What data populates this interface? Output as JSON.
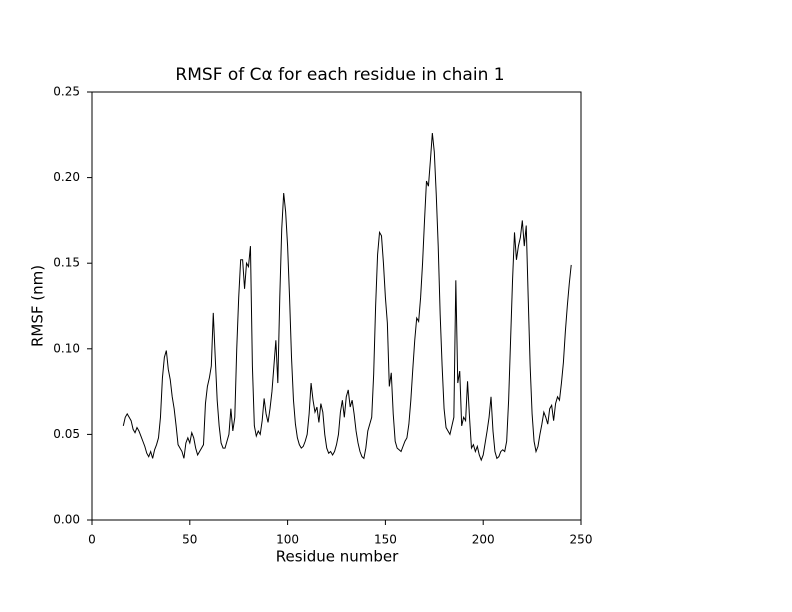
{
  "chart_data": {
    "type": "line",
    "title": "RMSF of  Cα for each residue in chain 1",
    "x_label": "Residue number",
    "y_label": "RMSF (nm)",
    "xlim": [
      0,
      250
    ],
    "xticks": [
      0,
      50,
      100,
      150,
      200,
      250
    ],
    "ylim": [
      0,
      0.25
    ],
    "yticks": [
      {
        "value": 0,
        "label": "0.00"
      },
      {
        "value": 0.05,
        "label": "0.05"
      },
      {
        "value": 0.1,
        "label": "0.10"
      },
      {
        "value": 0.15,
        "label": "0.15"
      },
      {
        "value": 0.2,
        "label": "0.20"
      },
      {
        "value": 0.25,
        "label": "0.25"
      }
    ],
    "color": "#000000",
    "x": [
      16,
      17,
      18,
      19,
      20,
      21,
      22,
      23,
      24,
      25,
      26,
      27,
      28,
      29,
      30,
      31,
      32,
      33,
      34,
      35,
      36,
      37,
      38,
      39,
      40,
      41,
      42,
      43,
      44,
      45,
      46,
      47,
      48,
      49,
      50,
      51,
      52,
      53,
      54,
      55,
      56,
      57,
      58,
      59,
      60,
      61,
      62,
      63,
      64,
      65,
      66,
      67,
      68,
      69,
      70,
      71,
      72,
      73,
      74,
      75,
      76,
      77,
      78,
      79,
      80,
      81,
      82,
      83,
      84,
      85,
      86,
      87,
      88,
      89,
      90,
      91,
      92,
      93,
      94,
      95,
      96,
      97,
      98,
      99,
      100,
      101,
      102,
      103,
      104,
      105,
      106,
      107,
      108,
      109,
      110,
      111,
      112,
      113,
      114,
      115,
      116,
      117,
      118,
      119,
      120,
      121,
      122,
      123,
      124,
      125,
      126,
      127,
      128,
      129,
      130,
      131,
      132,
      133,
      134,
      135,
      136,
      137,
      138,
      139,
      140,
      141,
      142,
      143,
      144,
      145,
      146,
      147,
      148,
      149,
      150,
      151,
      152,
      153,
      154,
      155,
      156,
      157,
      158,
      159,
      160,
      161,
      162,
      163,
      164,
      165,
      166,
      167,
      168,
      169,
      170,
      171,
      172,
      173,
      174,
      175,
      176,
      177,
      178,
      179,
      180,
      181,
      182,
      183,
      184,
      185,
      186,
      187,
      188,
      189,
      190,
      191,
      192,
      193,
      194,
      195,
      196,
      197,
      198,
      199,
      200,
      201,
      202,
      203,
      204,
      205,
      206,
      207,
      208,
      209,
      210,
      211,
      212,
      213,
      214,
      215,
      216,
      217,
      218,
      219,
      220,
      221,
      222,
      223,
      224,
      225,
      226,
      227,
      228,
      229,
      230,
      231,
      232,
      233,
      234,
      235,
      236,
      237,
      238,
      239,
      240,
      241,
      242,
      243,
      244,
      245
    ],
    "values": [
      0.055,
      0.06,
      0.062,
      0.06,
      0.058,
      0.053,
      0.051,
      0.054,
      0.052,
      0.049,
      0.046,
      0.043,
      0.039,
      0.037,
      0.04,
      0.036,
      0.041,
      0.044,
      0.048,
      0.06,
      0.083,
      0.095,
      0.099,
      0.088,
      0.082,
      0.072,
      0.065,
      0.055,
      0.044,
      0.042,
      0.04,
      0.036,
      0.045,
      0.048,
      0.045,
      0.051,
      0.048,
      0.042,
      0.038,
      0.04,
      0.042,
      0.044,
      0.068,
      0.078,
      0.083,
      0.09,
      0.121,
      0.095,
      0.07,
      0.055,
      0.045,
      0.042,
      0.042,
      0.046,
      0.05,
      0.065,
      0.052,
      0.06,
      0.1,
      0.13,
      0.152,
      0.152,
      0.135,
      0.15,
      0.148,
      0.16,
      0.09,
      0.055,
      0.049,
      0.052,
      0.05,
      0.058,
      0.071,
      0.062,
      0.057,
      0.065,
      0.075,
      0.09,
      0.105,
      0.08,
      0.13,
      0.17,
      0.191,
      0.18,
      0.16,
      0.13,
      0.095,
      0.07,
      0.056,
      0.048,
      0.044,
      0.042,
      0.043,
      0.046,
      0.05,
      0.062,
      0.08,
      0.07,
      0.063,
      0.066,
      0.057,
      0.068,
      0.063,
      0.05,
      0.042,
      0.039,
      0.04,
      0.038,
      0.04,
      0.044,
      0.05,
      0.063,
      0.07,
      0.06,
      0.072,
      0.076,
      0.066,
      0.07,
      0.062,
      0.052,
      0.045,
      0.04,
      0.037,
      0.036,
      0.042,
      0.052,
      0.056,
      0.06,
      0.085,
      0.125,
      0.155,
      0.168,
      0.166,
      0.15,
      0.13,
      0.115,
      0.078,
      0.086,
      0.062,
      0.046,
      0.042,
      0.041,
      0.04,
      0.043,
      0.046,
      0.048,
      0.056,
      0.07,
      0.088,
      0.105,
      0.118,
      0.116,
      0.13,
      0.15,
      0.175,
      0.198,
      0.195,
      0.21,
      0.226,
      0.215,
      0.19,
      0.16,
      0.12,
      0.09,
      0.065,
      0.054,
      0.052,
      0.05,
      0.055,
      0.06,
      0.14,
      0.08,
      0.087,
      0.055,
      0.06,
      0.058,
      0.081,
      0.06,
      0.042,
      0.044,
      0.04,
      0.043,
      0.038,
      0.035,
      0.038,
      0.045,
      0.052,
      0.06,
      0.072,
      0.052,
      0.04,
      0.036,
      0.037,
      0.04,
      0.041,
      0.04,
      0.046,
      0.07,
      0.105,
      0.14,
      0.168,
      0.152,
      0.16,
      0.165,
      0.175,
      0.16,
      0.172,
      0.13,
      0.09,
      0.062,
      0.046,
      0.04,
      0.043,
      0.05,
      0.056,
      0.063,
      0.06,
      0.056,
      0.065,
      0.067,
      0.058,
      0.068,
      0.072,
      0.07,
      0.08,
      0.092,
      0.11,
      0.125,
      0.138,
      0.149
    ]
  }
}
